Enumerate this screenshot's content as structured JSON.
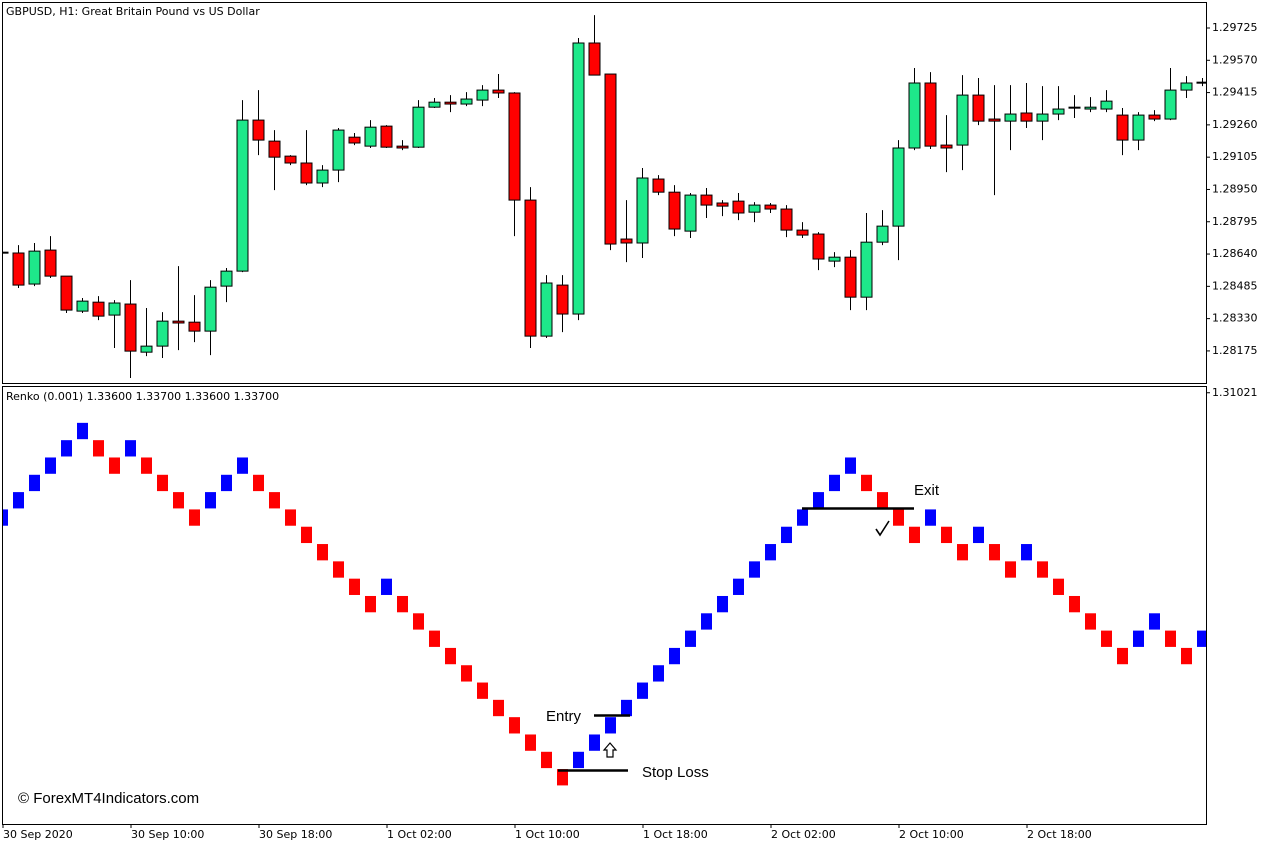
{
  "chart_data": [
    {
      "type": "candlestick",
      "title": "GBPUSD, H1:  Great Britain Pound vs US Dollar",
      "up_color": "#1ee88a",
      "down_color": "#ff0000",
      "open": [
        1.28649,
        1.28645,
        1.28496,
        1.28659,
        1.28534,
        1.28366,
        1.28409,
        1.28347,
        1.284,
        1.28169,
        1.28198,
        1.28318,
        1.28313,
        1.2827,
        1.28486,
        1.28558,
        1.29283,
        1.29182,
        1.2911,
        1.29077,
        1.28981,
        1.29043,
        1.29201,
        1.29158,
        1.29254,
        1.29158,
        1.29153,
        1.29345,
        1.29369,
        1.2936,
        1.29379,
        1.29427,
        1.29413,
        1.28899,
        1.28246,
        1.28491,
        1.28352,
        1.29653,
        1.29504,
        1.28712,
        1.28693,
        1.29,
        1.28937,
        1.2875,
        1.28923,
        1.28885,
        1.28894,
        1.28841,
        1.28875,
        1.28856,
        1.28755,
        1.28736,
        1.28606,
        1.28625,
        1.28433,
        1.28697,
        1.28774,
        1.29149,
        1.29461,
        1.29163,
        1.29163,
        1.29403,
        1.29288,
        1.29278,
        1.29317,
        1.29278,
        1.29312,
        1.29345,
        1.29336,
        1.29336,
        1.29307,
        1.29187,
        1.29307,
        1.29288,
        1.29427,
        1.29465
      ],
      "high": [
        1.28659,
        1.28683,
        1.28693,
        1.28726,
        1.28534,
        1.28429,
        1.28438,
        1.28419,
        1.28515,
        1.28381,
        1.28361,
        1.28582,
        1.28443,
        1.28515,
        1.28573,
        1.29379,
        1.29427,
        1.29235,
        1.29115,
        1.29235,
        1.29067,
        1.29245,
        1.29221,
        1.29283,
        1.29259,
        1.29187,
        1.29379,
        1.29389,
        1.29403,
        1.29417,
        1.29451,
        1.29504,
        1.29417,
        1.28961,
        1.28539,
        1.28539,
        1.29677,
        1.29787,
        1.29504,
        1.28899,
        1.29053,
        1.29019,
        1.28971,
        1.28933,
        1.28957,
        1.28899,
        1.28933,
        1.28889,
        1.28885,
        1.28875,
        1.28793,
        1.28745,
        1.28649,
        1.28659,
        1.28837,
        1.28851,
        1.29187,
        1.29533,
        1.29513,
        1.29307,
        1.29499,
        1.29485,
        1.29451,
        1.29451,
        1.29461,
        1.29446,
        1.29446,
        1.29403,
        1.29393,
        1.29427,
        1.29341,
        1.29321,
        1.29331,
        1.29533,
        1.29494,
        1.29485
      ],
      "low": [
        1.2864,
        1.28477,
        1.28486,
        1.28525,
        1.28357,
        1.28357,
        1.28323,
        1.28189,
        1.28045,
        1.2815,
        1.28141,
        1.28179,
        1.28217,
        1.28155,
        1.28409,
        1.28553,
        1.29115,
        1.28947,
        1.29067,
        1.28971,
        1.28961,
        1.28985,
        1.29163,
        1.29149,
        1.29149,
        1.29139,
        1.29149,
        1.29341,
        1.29321,
        1.2935,
        1.2935,
        1.29389,
        1.28726,
        1.28189,
        1.28237,
        1.28265,
        1.28323,
        1.29499,
        1.28659,
        1.28601,
        1.28621,
        1.28923,
        1.28726,
        1.28717,
        1.28813,
        1.28822,
        1.28803,
        1.28793,
        1.28837,
        1.28721,
        1.28717,
        1.28563,
        1.28577,
        1.28371,
        1.28371,
        1.28683,
        1.28611,
        1.29139,
        1.29144,
        1.29033,
        1.29043,
        1.29259,
        1.28923,
        1.29139,
        1.29245,
        1.29187,
        1.29283,
        1.29293,
        1.29321,
        1.29321,
        1.29115,
        1.29139,
        1.29278,
        1.29283,
        1.29389,
        1.29446
      ],
      "close": [
        1.28649,
        1.28491,
        1.28654,
        1.28534,
        1.28371,
        1.28414,
        1.28342,
        1.28405,
        1.28174,
        1.28198,
        1.28318,
        1.28309,
        1.2827,
        1.28481,
        1.28558,
        1.29283,
        1.29187,
        1.29105,
        1.29077,
        1.28981,
        1.29043,
        1.29235,
        1.29173,
        1.29249,
        1.29153,
        1.29149,
        1.29345,
        1.29369,
        1.2936,
        1.29384,
        1.29427,
        1.29413,
        1.28899,
        1.28246,
        1.28501,
        1.28352,
        1.29653,
        1.29499,
        1.28688,
        1.28693,
        1.29005,
        1.28937,
        1.2876,
        1.28923,
        1.28875,
        1.2887,
        1.28837,
        1.28875,
        1.28856,
        1.28755,
        1.28731,
        1.28616,
        1.28625,
        1.28433,
        1.28697,
        1.28774,
        1.29149,
        1.29461,
        1.29158,
        1.29149,
        1.29403,
        1.29278,
        1.29278,
        1.29312,
        1.29278,
        1.29312,
        1.29336,
        1.29345,
        1.29345,
        1.29374,
        1.29187,
        1.29307,
        1.29288,
        1.29427,
        1.29461,
        1.29465
      ],
      "ylim": [
        1.28021,
        1.29845
      ],
      "yticks": [
        1.29725,
        {
          "value": 1.2957,
          "label": "1.29570"
        },
        1.29415,
        {
          "value": 1.2926,
          "label": "1.29260"
        },
        1.29105,
        {
          "value": 1.2895,
          "label": "1.28950"
        },
        1.28795,
        {
          "value": 1.2864,
          "label": "1.28640"
        },
        1.28485,
        {
          "value": 1.2833,
          "label": "1.28330"
        },
        1.28175
      ]
    },
    {
      "type": "renko",
      "title": "Renko (0.001) 1.33600 1.33700 1.33600 1.33700",
      "up_color": "#0000ff",
      "down_color": "#ff0000",
      "categories": [
        "30 Sep 2020",
        null,
        null,
        null,
        null,
        null,
        null,
        null,
        "30 Sep 10:00",
        null,
        null,
        null,
        null,
        null,
        null,
        null,
        "30 Sep 18:00",
        null,
        null,
        null,
        null,
        null,
        null,
        null,
        "1 Oct 02:00",
        null,
        null,
        null,
        null,
        null,
        null,
        null,
        "1 Oct 10:00",
        null,
        null,
        null,
        null,
        null,
        null,
        null,
        "1 Oct 18:00",
        null,
        null,
        null,
        null,
        null,
        null,
        null,
        "2 Oct 02:00",
        null,
        null,
        null,
        null,
        null,
        null,
        null,
        "2 Oct 10:00",
        null,
        null,
        null,
        null,
        null,
        null,
        null,
        "2 Oct 18:00",
        null,
        null,
        null,
        null,
        null,
        null,
        null,
        null,
        null,
        null,
        null
      ],
      "open": [
        1.3025,
        1.3035,
        1.3045,
        1.3055,
        1.3065,
        1.3075,
        1.3075,
        1.3065,
        1.3065,
        1.3065,
        1.3055,
        1.3045,
        1.3035,
        1.3035,
        1.3045,
        1.3055,
        1.3055,
        1.3045,
        1.3035,
        1.3025,
        1.3015,
        1.3005,
        1.2995,
        1.2985,
        1.2985,
        1.2985,
        1.2975,
        1.2965,
        1.2955,
        1.2945,
        1.2935,
        1.2925,
        1.2915,
        1.2905,
        1.2895,
        1.2885,
        1.2885,
        1.2895,
        1.2905,
        1.2915,
        1.2925,
        1.2935,
        1.2945,
        1.2955,
        1.2965,
        1.2975,
        1.2985,
        1.2995,
        1.3005,
        1.3015,
        1.3025,
        1.3035,
        1.3045,
        1.3055,
        1.3055,
        1.3045,
        1.3035,
        1.3025,
        1.3025,
        1.3025,
        1.3015,
        1.3015,
        1.3015,
        1.3005,
        1.3005,
        1.3005,
        1.2995,
        1.2985,
        1.2975,
        1.2965,
        1.2955,
        1.2955,
        1.2965,
        1.2965,
        1.2955,
        1.2955
      ],
      "close": [
        1.3035,
        1.3045,
        1.3055,
        1.3065,
        1.3075,
        1.3085,
        1.3065,
        1.3055,
        1.3075,
        1.3055,
        1.3045,
        1.3035,
        1.3025,
        1.3045,
        1.3055,
        1.3065,
        1.3045,
        1.3035,
        1.3025,
        1.3015,
        1.3005,
        1.2995,
        1.2985,
        1.2975,
        1.2995,
        1.2975,
        1.2965,
        1.2955,
        1.2945,
        1.2935,
        1.2925,
        1.2915,
        1.2905,
        1.2895,
        1.2885,
        1.2875,
        1.2895,
        1.2905,
        1.2915,
        1.2925,
        1.2935,
        1.2945,
        1.2955,
        1.2965,
        1.2975,
        1.2985,
        1.2995,
        1.3005,
        1.3015,
        1.3025,
        1.3035,
        1.3045,
        1.3055,
        1.3065,
        1.3045,
        1.3035,
        1.3025,
        1.3015,
        1.3035,
        1.3015,
        1.3005,
        1.3025,
        1.3005,
        1.2995,
        1.3015,
        1.2995,
        1.2985,
        1.2975,
        1.2965,
        1.2955,
        1.2945,
        1.2965,
        1.2975,
        1.2955,
        1.2945,
        1.2965
      ],
      "ylim": [
        1.2853,
        1.3106
      ],
      "yticks": [
        1.31021
      ],
      "annotations": [
        "Entry",
        "Stop Loss",
        "Exit"
      ],
      "watermark": "© ForexMT4Indicators.com"
    }
  ]
}
